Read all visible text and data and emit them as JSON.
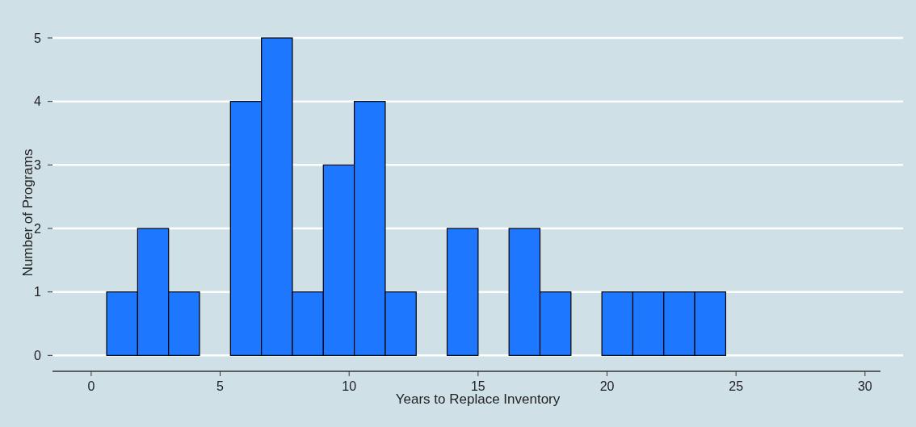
{
  "chart_data": {
    "type": "histogram",
    "xlabel": "Years to Replace Inventory",
    "ylabel": "Number of Programs",
    "bins": [
      0.6,
      1.8,
      3.0,
      4.2,
      5.4,
      6.6,
      7.8,
      9.0,
      10.2,
      11.4,
      12.6,
      13.8,
      15.0,
      16.2,
      17.4,
      18.6,
      19.8,
      21.0,
      22.2,
      23.4,
      24.6,
      25.8,
      27.0,
      28.2,
      29.4
    ],
    "values": [
      1,
      2,
      1,
      0,
      4,
      5,
      1,
      3,
      4,
      1,
      0,
      2,
      0,
      2,
      1,
      0,
      1,
      1,
      1,
      1,
      0,
      0,
      0,
      0
    ],
    "color": "#1e78ff",
    "xlim": [
      -1.5,
      30.6
    ],
    "ylim": [
      -0.25,
      5
    ],
    "xticks": [
      0,
      5,
      10,
      15,
      20,
      25,
      30
    ],
    "yticks": [
      0,
      1,
      2,
      3,
      4,
      5
    ],
    "grid": "y"
  }
}
